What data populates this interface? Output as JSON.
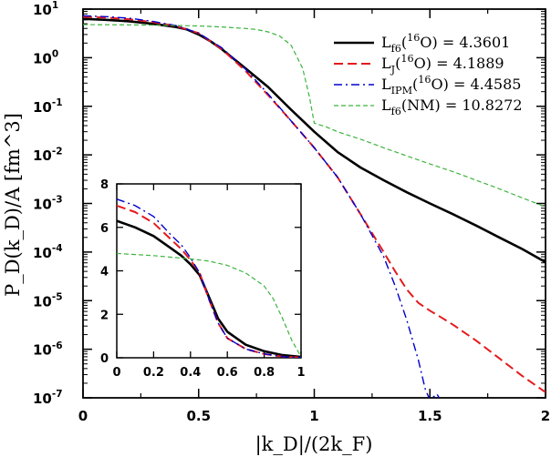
{
  "chart_data": [
    {
      "type": "line",
      "xlabel": "|k_D|/(2k_F)",
      "ylabel": "P_D(k_D)/A [fm^3]",
      "xlim": [
        0,
        2
      ],
      "ylim": [
        1e-07,
        10
      ],
      "yscale": "log",
      "x_ticks": [
        "0",
        "0.5",
        "1",
        "1.5",
        "2"
      ],
      "y_ticks": [
        "10^{-7}",
        "10^{-6}",
        "10^{-5}",
        "10^{-4}",
        "10^{-3}",
        "10^{-2}",
        "10^{-1}",
        "10^{0}",
        "10^{1}"
      ],
      "legend_position": "top-right",
      "series": [
        {
          "name": "L_f6(16O) = 4.3601",
          "legend_label": "L_{f6}(^{16}O) = 4.3601",
          "color": "#000000",
          "dash": "solid",
          "points": [
            [
              0,
              6.3
            ],
            [
              0.1,
              6.0
            ],
            [
              0.2,
              5.6
            ],
            [
              0.3,
              5.0
            ],
            [
              0.4,
              4.3
            ],
            [
              0.45,
              3.8
            ],
            [
              0.5,
              3.0
            ],
            [
              0.55,
              2.2
            ],
            [
              0.6,
              1.5
            ],
            [
              0.7,
              0.62
            ],
            [
              0.8,
              0.25
            ],
            [
              0.9,
              0.085
            ],
            [
              1.0,
              0.03
            ],
            [
              1.1,
              0.0115
            ],
            [
              1.2,
              0.0055
            ],
            [
              1.3,
              0.003
            ],
            [
              1.4,
              0.0017
            ],
            [
              1.5,
              0.001
            ],
            [
              1.6,
              0.0006
            ],
            [
              1.7,
              0.00035
            ],
            [
              1.8,
              0.0002
            ],
            [
              1.9,
              0.000115
            ],
            [
              2.0,
              6.2e-05
            ]
          ]
        },
        {
          "name": "L_J(16O) = 4.1889",
          "legend_label": "L_{J}(^{16}O) = 4.1889",
          "color": "#e41a1c",
          "dash": "long-dash",
          "points": [
            [
              0,
              7.0
            ],
            [
              0.1,
              6.7
            ],
            [
              0.2,
              6.2
            ],
            [
              0.3,
              5.4
            ],
            [
              0.4,
              4.5
            ],
            [
              0.5,
              3.2
            ],
            [
              0.6,
              1.5
            ],
            [
              0.7,
              0.55
            ],
            [
              0.8,
              0.17
            ],
            [
              0.9,
              0.05
            ],
            [
              1.0,
              0.014
            ],
            [
              1.1,
              0.0035
            ],
            [
              1.2,
              0.0006
            ],
            [
              1.3,
              0.0001
            ],
            [
              1.35,
              4e-05
            ],
            [
              1.4,
              1.7e-05
            ],
            [
              1.45,
              9e-06
            ],
            [
              1.5,
              6.2e-06
            ],
            [
              1.55,
              4.5e-06
            ],
            [
              1.6,
              3.2e-06
            ],
            [
              1.7,
              1.5e-06
            ],
            [
              1.8,
              6.5e-07
            ],
            [
              1.9,
              2.8e-07
            ],
            [
              2.0,
              1.3e-07
            ]
          ]
        },
        {
          "name": "L_IPM(16O) = 4.4585",
          "legend_label": "L_{IPM}(^{16}O) = 4.4585",
          "color": "#0000cc",
          "dash": "dash-dot",
          "points": [
            [
              0,
              7.3
            ],
            [
              0.1,
              7.0
            ],
            [
              0.2,
              6.5
            ],
            [
              0.3,
              5.6
            ],
            [
              0.4,
              4.6
            ],
            [
              0.5,
              3.2
            ],
            [
              0.6,
              1.6
            ],
            [
              0.7,
              0.6
            ],
            [
              0.8,
              0.18
            ],
            [
              0.9,
              0.05
            ],
            [
              1.0,
              0.014
            ],
            [
              1.1,
              0.0035
            ],
            [
              1.2,
              0.0006
            ],
            [
              1.3,
              8e-05
            ],
            [
              1.35,
              2e-05
            ],
            [
              1.4,
              4e-06
            ],
            [
              1.45,
              6e-07
            ],
            [
              1.48,
              1.5e-07
            ],
            [
              1.5,
              9e-08
            ],
            [
              1.53,
              1.2e-07
            ],
            [
              1.56,
              7e-08
            ]
          ]
        },
        {
          "name": "L_f6(NM) = 10.8272",
          "legend_label": "L_{f6}(NM) = 10.8272",
          "color": "#3cb43c",
          "dash": "short-dash",
          "points": [
            [
              0,
              4.8
            ],
            [
              0.2,
              4.75
            ],
            [
              0.4,
              4.6
            ],
            [
              0.5,
              4.5
            ],
            [
              0.6,
              4.3
            ],
            [
              0.7,
              4.0
            ],
            [
              0.75,
              3.8
            ],
            [
              0.8,
              3.4
            ],
            [
              0.85,
              2.8
            ],
            [
              0.9,
              1.8
            ],
            [
              0.95,
              0.6
            ],
            [
              0.98,
              0.15
            ],
            [
              1.0,
              0.045
            ],
            [
              1.05,
              0.038
            ],
            [
              1.1,
              0.03
            ],
            [
              1.2,
              0.021
            ],
            [
              1.3,
              0.014
            ],
            [
              1.4,
              0.0095
            ],
            [
              1.5,
              0.0065
            ],
            [
              1.6,
              0.0045
            ],
            [
              1.7,
              0.003
            ],
            [
              1.8,
              0.002
            ],
            [
              1.9,
              0.0013
            ],
            [
              2.0,
              0.00085
            ]
          ]
        }
      ]
    },
    {
      "type": "line",
      "position": "inset",
      "xlim": [
        0,
        1
      ],
      "ylim": [
        0,
        8
      ],
      "x_ticks": [
        "0",
        "0.2",
        "0.4",
        "0.6",
        "0.8",
        "1"
      ],
      "y_ticks": [
        "0",
        "2",
        "4",
        "6",
        "8"
      ],
      "series": [
        {
          "color": "#000000",
          "dash": "solid",
          "points": [
            [
              0,
              6.3
            ],
            [
              0.1,
              6.0
            ],
            [
              0.2,
              5.6
            ],
            [
              0.3,
              5.0
            ],
            [
              0.35,
              4.7
            ],
            [
              0.4,
              4.3
            ],
            [
              0.45,
              3.8
            ],
            [
              0.5,
              2.8
            ],
            [
              0.55,
              1.8
            ],
            [
              0.6,
              1.2
            ],
            [
              0.7,
              0.6
            ],
            [
              0.8,
              0.3
            ],
            [
              0.9,
              0.12
            ],
            [
              1.0,
              0.04
            ]
          ]
        },
        {
          "color": "#e41a1c",
          "dash": "long-dash",
          "points": [
            [
              0,
              7.0
            ],
            [
              0.1,
              6.7
            ],
            [
              0.2,
              6.2
            ],
            [
              0.3,
              5.4
            ],
            [
              0.35,
              5.0
            ],
            [
              0.4,
              4.5
            ],
            [
              0.45,
              3.9
            ],
            [
              0.5,
              2.7
            ],
            [
              0.55,
              1.6
            ],
            [
              0.6,
              0.9
            ],
            [
              0.7,
              0.4
            ],
            [
              0.8,
              0.17
            ],
            [
              0.9,
              0.05
            ],
            [
              1.0,
              0.014
            ]
          ]
        },
        {
          "color": "#0000cc",
          "dash": "dash-dot",
          "points": [
            [
              0,
              7.3
            ],
            [
              0.1,
              7.0
            ],
            [
              0.2,
              6.5
            ],
            [
              0.3,
              5.6
            ],
            [
              0.35,
              5.2
            ],
            [
              0.4,
              4.6
            ],
            [
              0.45,
              3.9
            ],
            [
              0.5,
              2.7
            ],
            [
              0.55,
              1.6
            ],
            [
              0.6,
              0.9
            ],
            [
              0.7,
              0.4
            ],
            [
              0.8,
              0.18
            ],
            [
              0.9,
              0.05
            ],
            [
              1.0,
              0.014
            ]
          ]
        },
        {
          "color": "#3cb43c",
          "dash": "short-dash",
          "points": [
            [
              0,
              4.8
            ],
            [
              0.2,
              4.7
            ],
            [
              0.4,
              4.55
            ],
            [
              0.5,
              4.45
            ],
            [
              0.6,
              4.25
            ],
            [
              0.7,
              3.9
            ],
            [
              0.8,
              3.3
            ],
            [
              0.85,
              2.7
            ],
            [
              0.9,
              1.8
            ],
            [
              0.95,
              0.8
            ],
            [
              1.0,
              0.05
            ]
          ]
        }
      ]
    }
  ]
}
